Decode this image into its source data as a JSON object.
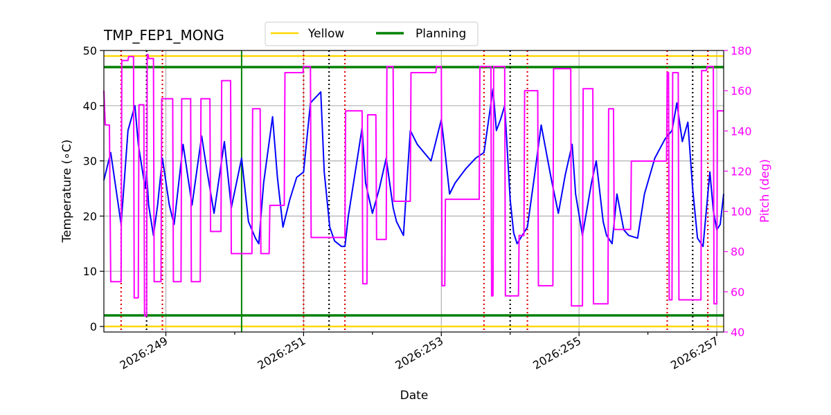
{
  "chart_data": {
    "type": "line",
    "title": "TMP_FEP1_MONG",
    "xlabel": "Date",
    "ylabel": "Temperature ($^\\circ$C)",
    "ylabel_display": "Temperature (∘C)",
    "ylabel_right": "Pitch (deg)",
    "xlim": [
      248.1,
      257.1
    ],
    "ylim": [
      -1,
      50
    ],
    "ylim_right": [
      40,
      180
    ],
    "x_ticks": [
      249,
      251,
      253,
      255,
      257
    ],
    "x_tick_labels": [
      "2026:249",
      "2026:251",
      "2026:253",
      "2026:255",
      "2026:257"
    ],
    "y_ticks": [
      0,
      10,
      20,
      30,
      40,
      50
    ],
    "y_ticks_right": [
      40,
      60,
      80,
      100,
      120,
      140,
      160,
      180
    ],
    "grid": true,
    "legend": {
      "placement": "top-center",
      "entries": [
        {
          "name": "Yellow",
          "color": "#ffd700"
        },
        {
          "name": "Planning",
          "color": "#008000"
        }
      ]
    },
    "limits": {
      "yellow": [
        0,
        49
      ],
      "planning": [
        2,
        47
      ]
    },
    "planning_vline_x": 250.1,
    "red_vlines_x": [
      248.35,
      248.95,
      251.0,
      251.6,
      253.62,
      254.25,
      256.28,
      256.87
    ],
    "black_vlines_x": [
      248.72,
      251.37,
      254.0,
      256.65
    ],
    "colors": {
      "temperature": "#0000ff",
      "pitch": "#ff00ff",
      "red_line": "#dd0000",
      "black_line": "#000000",
      "grid": "#b0b0b0"
    },
    "series": [
      {
        "name": "",
        "axis": "left",
        "x": [
          248.1,
          248.2,
          248.35,
          248.45,
          248.55,
          248.6,
          248.7,
          248.72,
          248.75,
          248.82,
          248.88,
          248.95,
          249.05,
          249.12,
          249.25,
          249.38,
          249.52,
          249.6,
          249.7,
          249.85,
          249.95,
          250.1,
          250.2,
          250.3,
          250.35,
          250.42,
          250.55,
          250.62,
          250.7,
          250.8,
          250.9,
          251.0,
          251.1,
          251.25,
          251.3,
          251.38,
          251.45,
          251.55,
          251.6,
          251.65,
          251.75,
          251.85,
          251.9,
          252.0,
          252.1,
          252.2,
          252.3,
          252.35,
          252.45,
          252.55,
          252.65,
          252.85,
          253.0,
          253.05,
          253.12,
          253.2,
          253.35,
          253.5,
          253.62,
          253.75,
          253.8,
          253.86,
          253.92,
          254.0,
          254.05,
          254.1,
          254.2,
          254.25,
          254.35,
          254.45,
          254.6,
          254.7,
          254.8,
          254.9,
          254.95,
          255.05,
          255.18,
          255.25,
          255.35,
          255.4,
          255.48,
          255.55,
          255.65,
          255.72,
          255.85,
          255.95,
          256.1,
          256.25,
          256.35,
          256.42,
          256.5,
          256.58,
          256.65,
          256.72,
          256.8,
          256.9,
          256.95,
          257.0,
          257.05,
          257.1
        ],
        "y": [
          26.5,
          31.5,
          18.5,
          35.5,
          40.0,
          33.0,
          25.0,
          28.0,
          22.0,
          16.5,
          22.0,
          30.5,
          22.0,
          18.5,
          33.0,
          22.0,
          34.5,
          28.0,
          20.5,
          33.5,
          21.5,
          30.5,
          19.0,
          16.0,
          15.0,
          26.0,
          38.0,
          27.0,
          18.0,
          23.0,
          27.0,
          28.0,
          40.5,
          42.5,
          28.0,
          18.0,
          15.5,
          14.5,
          14.5,
          20.0,
          28.0,
          36.0,
          26.0,
          20.5,
          25.0,
          30.5,
          21.5,
          19.0,
          16.5,
          35.5,
          33.0,
          30.0,
          37.5,
          32.0,
          24.0,
          26.0,
          28.5,
          30.5,
          31.5,
          43.0,
          35.5,
          37.5,
          40.0,
          23.0,
          17.0,
          15.0,
          17.0,
          18.0,
          27.0,
          36.5,
          26.5,
          20.5,
          27.5,
          33.0,
          24.0,
          16.5,
          26.0,
          30.0,
          19.0,
          16.5,
          15.0,
          24.0,
          17.5,
          16.5,
          16.0,
          24.0,
          30.5,
          34.0,
          35.5,
          40.5,
          33.5,
          37.0,
          25.0,
          16.0,
          14.5,
          28.0,
          21.0,
          17.5,
          18.5,
          24.0
        ]
      },
      {
        "name": "",
        "axis": "right",
        "x": [
          248.1,
          248.12,
          248.18,
          248.2,
          248.35,
          248.36,
          248.45,
          248.46,
          248.53,
          248.54,
          248.6,
          248.61,
          248.68,
          248.69,
          248.72,
          248.73,
          248.74,
          248.75,
          248.82,
          248.83,
          248.93,
          248.94,
          249.1,
          249.11,
          249.22,
          249.23,
          249.36,
          249.37,
          249.5,
          249.51,
          249.64,
          249.65,
          249.8,
          249.81,
          249.94,
          249.95,
          250.0,
          250.01,
          250.25,
          250.26,
          250.35,
          250.36,
          250.37,
          250.38,
          250.5,
          250.51,
          250.6,
          250.61,
          250.72,
          250.73,
          250.99,
          251.0,
          251.02,
          251.03,
          251.1,
          251.11,
          251.3,
          251.31,
          251.6,
          251.61,
          251.85,
          251.86,
          251.92,
          251.93,
          252.05,
          252.06,
          252.2,
          252.21,
          252.3,
          252.31,
          252.38,
          252.39,
          252.55,
          252.56,
          252.92,
          252.93,
          253.0,
          253.01,
          253.05,
          253.06,
          253.17,
          253.18,
          253.3,
          253.31,
          253.55,
          253.56,
          253.68,
          253.7,
          253.72,
          253.73,
          253.75,
          253.76,
          253.85,
          253.86,
          253.92,
          253.93,
          254.06,
          254.07,
          254.12,
          254.13,
          254.2,
          254.21,
          254.25,
          254.26,
          254.4,
          254.41,
          254.62,
          254.63,
          254.8,
          254.81,
          254.88,
          254.89,
          254.92,
          254.93,
          255.05,
          255.06,
          255.14,
          255.15,
          255.2,
          255.21,
          255.33,
          255.34,
          255.42,
          255.43,
          255.5,
          255.51,
          255.7,
          255.71,
          255.75,
          255.76,
          255.9,
          255.91,
          256.27,
          256.28,
          256.3,
          256.31,
          256.35,
          256.36,
          256.38,
          256.39,
          256.44,
          256.45,
          256.6,
          256.61,
          256.72,
          256.73,
          256.77,
          256.78,
          256.85,
          256.86,
          256.88,
          256.89,
          256.95,
          256.96,
          257.0,
          257.01,
          257.1
        ],
        "y": [
          160,
          143,
          143,
          65,
          65,
          175,
          175,
          177,
          177,
          57,
          57,
          153,
          153,
          48,
          48,
          178,
          178,
          176,
          176,
          65,
          65,
          156,
          156,
          65,
          65,
          156,
          156,
          65,
          65,
          156,
          156,
          90,
          90,
          165,
          165,
          79,
          79,
          79,
          79,
          151,
          151,
          151,
          151,
          79,
          79,
          103,
          103,
          103,
          103,
          169,
          169,
          172,
          172,
          172,
          172,
          87,
          87,
          87,
          87,
          150,
          150,
          64,
          64,
          148,
          148,
          86,
          86,
          172,
          172,
          105,
          105,
          105,
          105,
          169,
          169,
          172,
          172,
          63,
          63,
          106,
          106,
          106,
          106,
          106,
          106,
          172,
          172,
          172,
          172,
          58,
          58,
          172,
          172,
          172,
          172,
          58,
          58,
          58,
          58,
          88,
          88,
          160,
          160,
          160,
          160,
          63,
          63,
          171,
          171,
          171,
          171,
          53,
          53,
          53,
          53,
          161,
          161,
          161,
          161,
          54,
          54,
          54,
          54,
          151,
          151,
          91,
          91,
          91,
          91,
          125,
          125,
          125,
          125,
          169,
          169,
          56,
          56,
          169,
          169,
          169,
          169,
          56,
          56,
          56,
          56,
          56,
          56,
          170,
          170,
          172,
          172,
          172,
          172,
          54,
          54,
          150,
          150
        ]
      }
    ]
  }
}
